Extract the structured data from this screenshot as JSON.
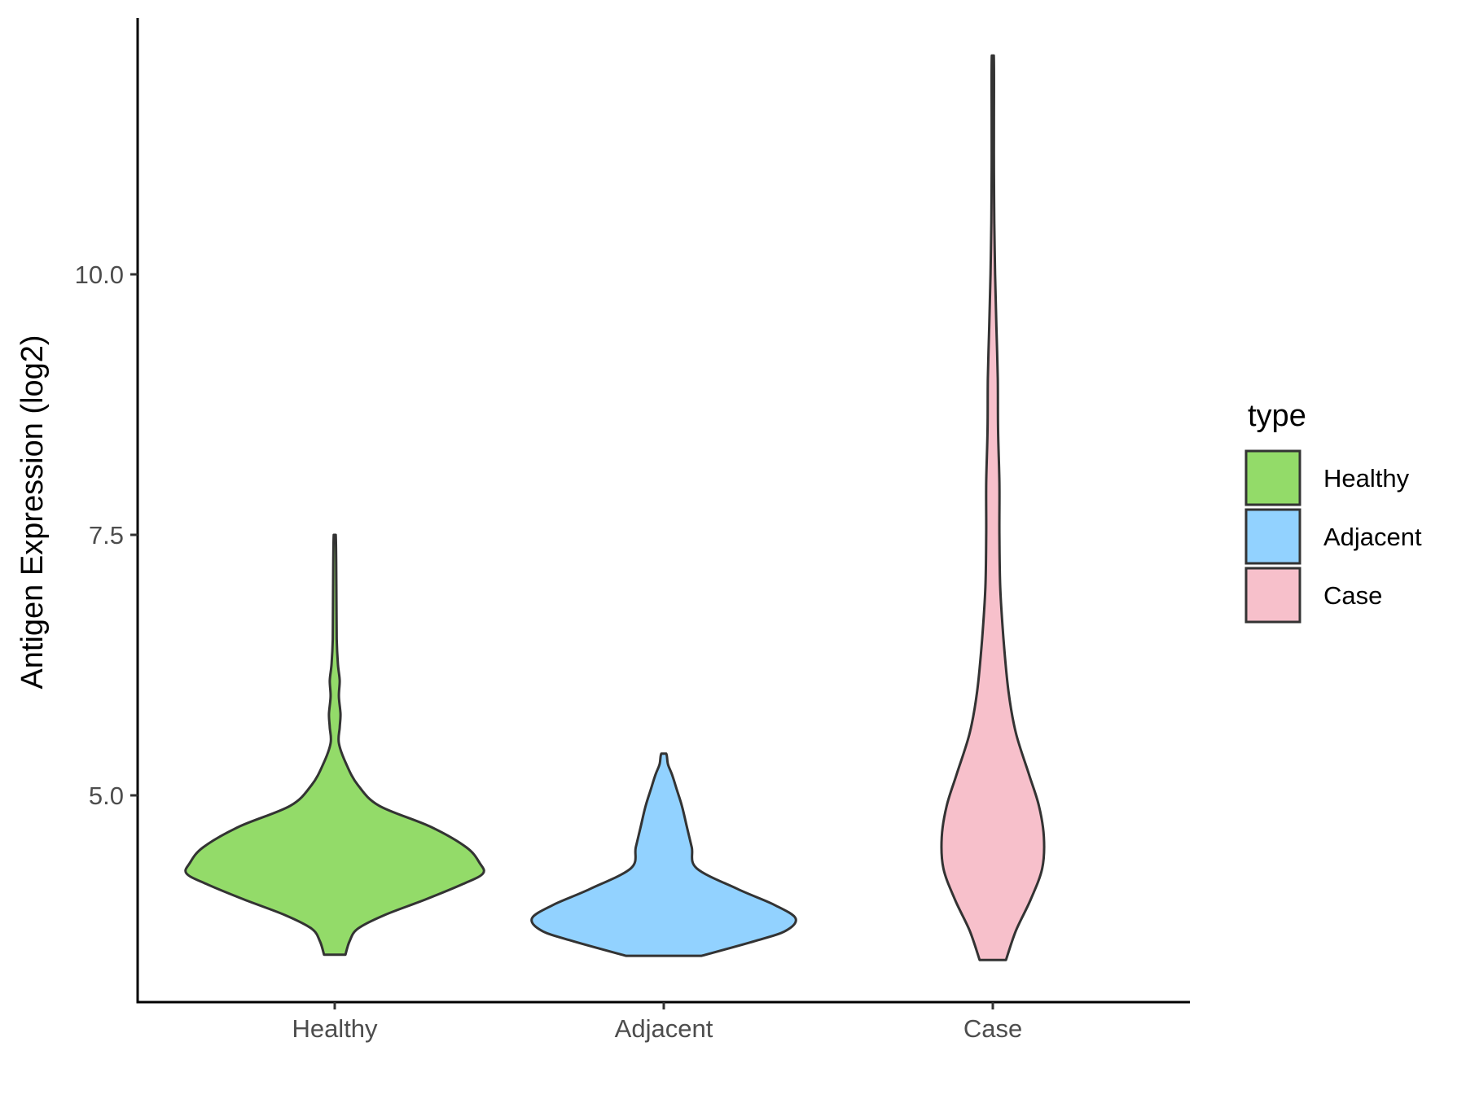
{
  "chart_data": {
    "type": "violin",
    "ylabel": "Antigen Expression (log2)",
    "xlabel": "",
    "categories": [
      "Healthy",
      "Adjacent",
      "Case"
    ],
    "ylim": [
      3.0,
      12.5
    ],
    "yticks": [
      5.0,
      7.5,
      10.0
    ],
    "ytick_labels": [
      "5.0",
      "7.5",
      "10.0"
    ],
    "grid": false,
    "legend": {
      "title": "type",
      "position": "right",
      "entries": [
        "Healthy",
        "Adjacent",
        "Case"
      ]
    },
    "series": [
      {
        "name": "Healthy",
        "color": "#93DB69",
        "ymin": 3.47,
        "ymax": 7.5,
        "density": [
          [
            3.47,
            0.065
          ],
          [
            3.6,
            0.09
          ],
          [
            3.72,
            0.14
          ],
          [
            3.85,
            0.3
          ],
          [
            4.0,
            0.55
          ],
          [
            4.15,
            0.78
          ],
          [
            4.25,
            0.9
          ],
          [
            4.35,
            0.88
          ],
          [
            4.5,
            0.8
          ],
          [
            4.7,
            0.58
          ],
          [
            4.9,
            0.27
          ],
          [
            5.1,
            0.14
          ],
          [
            5.3,
            0.07
          ],
          [
            5.5,
            0.025
          ],
          [
            5.65,
            0.03
          ],
          [
            5.78,
            0.035
          ],
          [
            5.95,
            0.025
          ],
          [
            6.1,
            0.03
          ],
          [
            6.25,
            0.02
          ],
          [
            6.5,
            0.012
          ],
          [
            7.0,
            0.01
          ],
          [
            7.5,
            0.006
          ]
        ]
      },
      {
        "name": "Adjacent",
        "color": "#92D2FF",
        "ymin": 3.46,
        "ymax": 5.4,
        "density": [
          [
            3.46,
            0.23
          ],
          [
            3.6,
            0.55
          ],
          [
            3.7,
            0.74
          ],
          [
            3.82,
            0.8
          ],
          [
            3.95,
            0.67
          ],
          [
            4.1,
            0.45
          ],
          [
            4.3,
            0.2
          ],
          [
            4.5,
            0.17
          ],
          [
            4.7,
            0.14
          ],
          [
            4.9,
            0.11
          ],
          [
            5.05,
            0.08
          ],
          [
            5.2,
            0.05
          ],
          [
            5.3,
            0.025
          ],
          [
            5.4,
            0.015
          ]
        ]
      },
      {
        "name": "Case",
        "color": "#F7C0CB",
        "ymin": 3.42,
        "ymax": 12.1,
        "density": [
          [
            3.42,
            0.08
          ],
          [
            3.7,
            0.14
          ],
          [
            4.0,
            0.23
          ],
          [
            4.3,
            0.3
          ],
          [
            4.6,
            0.31
          ],
          [
            4.9,
            0.28
          ],
          [
            5.2,
            0.22
          ],
          [
            5.6,
            0.14
          ],
          [
            6.0,
            0.095
          ],
          [
            6.5,
            0.065
          ],
          [
            7.0,
            0.045
          ],
          [
            7.5,
            0.04
          ],
          [
            8.0,
            0.04
          ],
          [
            8.5,
            0.032
          ],
          [
            9.0,
            0.03
          ],
          [
            9.5,
            0.022
          ],
          [
            10.0,
            0.014
          ],
          [
            10.5,
            0.009
          ],
          [
            11.0,
            0.007
          ],
          [
            11.5,
            0.007
          ],
          [
            12.1,
            0.006
          ]
        ]
      }
    ]
  }
}
